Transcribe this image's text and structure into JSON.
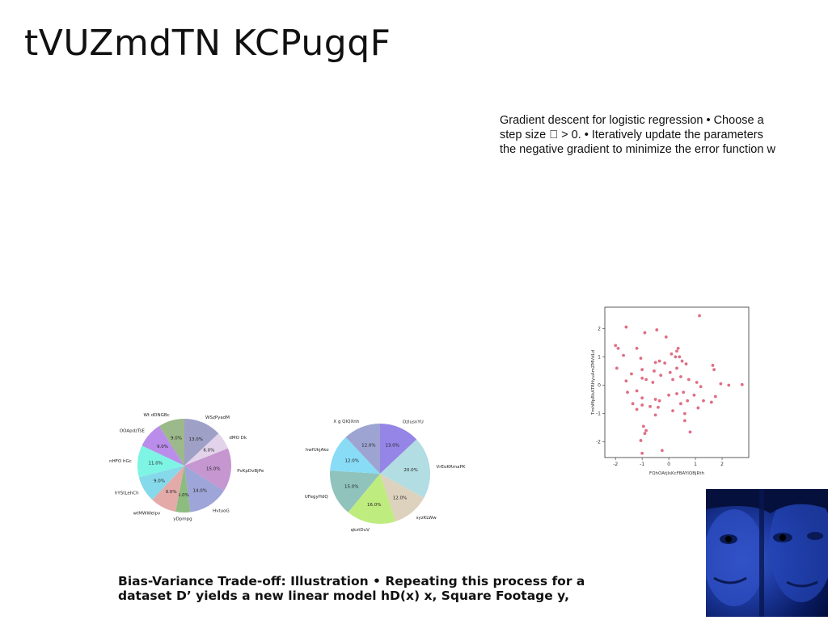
{
  "slide": {
    "title": "tVUZmdTN KCPugqF",
    "body_lines": [
      "Gradient descent for logistic regression • Choose a",
      "step size \u0000 > 0. • Iteratively update the parameters",
      "the negative gradient to minimize the error function w"
    ],
    "caption_lines": [
      "Bias-Variance Trade-off: Illustration • Repeating this process for a",
      "dataset D’ yields a new linear model hD(x) x, Square Footage y,"
    ]
  },
  "chart_data": [
    {
      "type": "pie",
      "slices": [
        {
          "label": "WSzPyadM",
          "value": 13.0,
          "pct": "13.0%",
          "color": "#9fa0c6"
        },
        {
          "label": "dMO Dk",
          "value": 6.0,
          "pct": "6.0%",
          "color": "#e2d3ea"
        },
        {
          "label": "PvKpDvBjPe",
          "value": 15.0,
          "pct": "15.0%",
          "color": "#c596cf"
        },
        {
          "label": "HvtuoG",
          "value": 14.0,
          "pct": "14.0%",
          "color": "#9ea5d8"
        },
        {
          "label": "yDpmpg",
          "value": 5.0,
          "pct": "5.0%",
          "color": "#8dbb80"
        },
        {
          "label": "wtMWWelpv",
          "value": 9.0,
          "pct": "9.0%",
          "color": "#e3aaa8"
        },
        {
          "label": "hYStLehCh",
          "value": 9.0,
          "pct": "9.0%",
          "color": "#86d9ea"
        },
        {
          "label": "nHFO hGc",
          "value": 11.0,
          "pct": "11.0%",
          "color": "#7ef4e4"
        },
        {
          "label": "OOApdzTsE",
          "value": 9.0,
          "pct": "9.0%",
          "color": "#b98de9"
        },
        {
          "label": "Wt dDNGBc",
          "value": 9.0,
          "pct": "9.0%",
          "color": "#9bb98a"
        }
      ]
    },
    {
      "type": "pie",
      "slices": [
        {
          "label": "OzlusnYU",
          "value": 13.0,
          "pct": "13.0%",
          "color": "#9585e6"
        },
        {
          "label": "VrEoKRmaPK",
          "value": 20.0,
          "pct": "20.0%",
          "color": "#b2dde3"
        },
        {
          "label": "syzKLWw",
          "value": 12.0,
          "pct": "12.0%",
          "color": "#ddd2bd"
        },
        {
          "label": "qkztDuV",
          "value": 16.0,
          "pct": "16.0%",
          "color": "#bfec7f"
        },
        {
          "label": "UFegyHdQ",
          "value": 15.0,
          "pct": "15.0%",
          "color": "#8fc3bc"
        },
        {
          "label": "hwfUkjAko",
          "value": 12.0,
          "pct": "12.0%",
          "color": "#88dcf6"
        },
        {
          "label": "X g QIQXnh",
          "value": 12.0,
          "pct": "12.0%",
          "color": "#9ea4d2"
        }
      ]
    },
    {
      "type": "scatter",
      "xlabel": "FQhOAtjlsKcFBAYIQBjRth",
      "ylabel": "TmhMpRkATRHyuAmZMVdLd",
      "xlim": [
        -2.4,
        3.0
      ],
      "ylim": [
        -2.55,
        2.75
      ],
      "xticks": [
        -2,
        -1,
        0,
        1,
        2
      ],
      "yticks": [
        -2,
        -1,
        0,
        1,
        2
      ],
      "point_color": "#d9566f",
      "points": [
        [
          1.15,
          2.45
        ],
        [
          -1.6,
          2.05
        ],
        [
          -0.45,
          1.95
        ],
        [
          -0.9,
          1.85
        ],
        [
          -0.1,
          1.7
        ],
        [
          -2.0,
          1.4
        ],
        [
          -1.9,
          1.3
        ],
        [
          -1.2,
          1.3
        ],
        [
          0.35,
          1.3
        ],
        [
          0.3,
          1.2
        ],
        [
          0.1,
          1.1
        ],
        [
          -1.7,
          1.05
        ],
        [
          0.25,
          1.0
        ],
        [
          0.4,
          1.0
        ],
        [
          -1.05,
          0.95
        ],
        [
          -0.35,
          0.85
        ],
        [
          0.5,
          0.85
        ],
        [
          -0.5,
          0.8
        ],
        [
          -0.15,
          0.78
        ],
        [
          0.65,
          0.75
        ],
        [
          1.65,
          0.7
        ],
        [
          -1.95,
          0.6
        ],
        [
          -1.0,
          0.55
        ],
        [
          0.3,
          0.6
        ],
        [
          1.7,
          0.55
        ],
        [
          -0.55,
          0.5
        ],
        [
          0.05,
          0.45
        ],
        [
          -1.4,
          0.4
        ],
        [
          -0.3,
          0.35
        ],
        [
          0.45,
          0.3
        ],
        [
          -1.0,
          0.25
        ],
        [
          -0.85,
          0.2
        ],
        [
          0.15,
          0.2
        ],
        [
          0.75,
          0.2
        ],
        [
          -1.6,
          0.15
        ],
        [
          -0.6,
          0.1
        ],
        [
          1.05,
          0.1
        ],
        [
          1.95,
          0.05
        ],
        [
          2.25,
          0.0
        ],
        [
          2.75,
          0.02
        ],
        [
          1.2,
          -0.05
        ],
        [
          -1.2,
          -0.2
        ],
        [
          -1.55,
          -0.25
        ],
        [
          0.55,
          -0.25
        ],
        [
          0.3,
          -0.3
        ],
        [
          0.0,
          -0.35
        ],
        [
          0.95,
          -0.35
        ],
        [
          1.75,
          -0.4
        ],
        [
          -1.0,
          -0.45
        ],
        [
          -0.5,
          -0.5
        ],
        [
          -0.35,
          -0.55
        ],
        [
          0.7,
          -0.55
        ],
        [
          1.6,
          -0.6
        ],
        [
          -1.35,
          -0.65
        ],
        [
          0.45,
          -0.65
        ],
        [
          -1.0,
          -0.7
        ],
        [
          -0.7,
          -0.75
        ],
        [
          -0.4,
          -0.78
        ],
        [
          1.1,
          -0.8
        ],
        [
          -1.2,
          -0.85
        ],
        [
          0.15,
          -0.9
        ],
        [
          0.6,
          -1.0
        ],
        [
          -0.5,
          -1.05
        ],
        [
          0.6,
          -1.25
        ],
        [
          -0.95,
          -1.45
        ],
        [
          -0.85,
          -1.6
        ],
        [
          -0.9,
          -1.7
        ],
        [
          -0.25,
          -2.3
        ],
        [
          -1.0,
          -2.4
        ],
        [
          0.8,
          -1.65
        ],
        [
          -1.05,
          -1.95
        ],
        [
          1.3,
          -0.55
        ]
      ]
    }
  ]
}
